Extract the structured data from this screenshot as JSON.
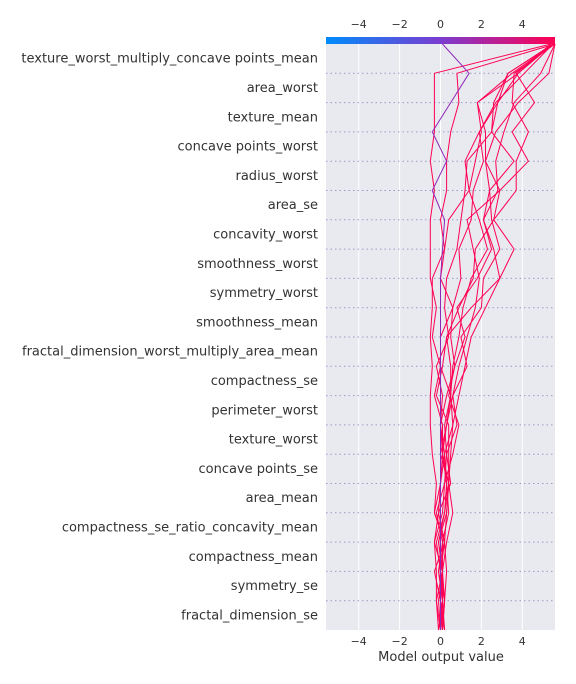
{
  "chart_data": {
    "type": "line",
    "xlabel": "Model output value",
    "xlim": [
      -5.6,
      5.6
    ],
    "xticks": [
      -4,
      -2,
      0,
      2,
      4
    ],
    "grid": true,
    "colorbar": {
      "position": "top",
      "colors": [
        "#008bfb",
        "#7b3cd0",
        "#ff0052"
      ]
    },
    "line_color": "#ff0052",
    "features": [
      "texture_worst_multiply_concave points_mean",
      "area_worst",
      "texture_mean",
      "concave points_worst",
      "radius_worst",
      "area_se",
      "concavity_worst",
      "smoothness_worst",
      "symmetry_worst",
      "smoothness_mean",
      "fractal_dimension_worst_multiply_area_mean",
      "compactness_se",
      "perimeter_worst",
      "texture_worst",
      "concave points_se",
      "area_mean",
      "compactness_se_ratio_concavity_mean",
      "compactness_mean",
      "symmetry_se",
      "fractal_dimension_se"
    ],
    "series_note_base": 0.0,
    "series": [
      {
        "color": "#ff0052",
        "values": [
          0.1,
          0.2,
          0.3,
          0.2,
          -0.3,
          -0.2,
          -0.4,
          -0.5,
          -0.5,
          -0.4,
          -0.5,
          -0.4,
          -0.4,
          0.2,
          0.0,
          0.3,
          0.3,
          0.5,
          0.9,
          0.8,
          5.6
        ]
      },
      {
        "color": "#ff0052",
        "values": [
          0.0,
          -0.2,
          0.1,
          -0.1,
          0.3,
          0.4,
          0.4,
          0.4,
          -0.2,
          0.1,
          0.3,
          1.5,
          2.9,
          3.6,
          2.6,
          3.7,
          3.7,
          4.3,
          3.5,
          3.6,
          5.6
        ]
      },
      {
        "color": "#ff0052",
        "values": [
          0.2,
          0.1,
          -0.1,
          0.1,
          0.4,
          0.3,
          0.2,
          0.6,
          0.5,
          0.0,
          -0.4,
          -0.2,
          -0.5,
          -0.5,
          -0.5,
          -0.3,
          -0.5,
          -0.3,
          -0.3,
          -0.3,
          5.4
        ]
      },
      {
        "color": "#ff0052",
        "values": [
          0.0,
          0.2,
          -0.1,
          0.2,
          -0.3,
          0.0,
          0.1,
          0.0,
          0.3,
          0.7,
          0.5,
          0.6,
          1.0,
          0.9,
          1.5,
          1.6,
          2.1,
          1.9,
          2.8,
          3.3,
          5.5
        ]
      },
      {
        "color": "#ff0052",
        "values": [
          -0.1,
          -0.2,
          -0.2,
          -0.3,
          -0.1,
          0.0,
          0.2,
          0.0,
          0.1,
          -0.2,
          0.4,
          0.2,
          0.3,
          0.8,
          1.0,
          1.2,
          1.3,
          2.5,
          2.6,
          3.3,
          5.5
        ]
      },
      {
        "color": "#ff0052",
        "values": [
          0.0,
          0.2,
          0.0,
          -0.2,
          0.2,
          0.3,
          0.1,
          0.1,
          -0.3,
          0.0,
          0.0,
          0.6,
          0.0,
          0.2,
          0.4,
          1.4,
          1.7,
          2.0,
          1.8,
          3.8,
          5.4
        ]
      },
      {
        "color": "#ff0052",
        "values": [
          0.2,
          0.0,
          0.1,
          0.1,
          -0.2,
          0.2,
          0.3,
          0.2,
          0.5,
          0.5,
          0.3,
          0.9,
          1.6,
          1.7,
          2.6,
          2.9,
          2.2,
          2.2,
          1.8,
          3.5,
          5.5
        ]
      },
      {
        "color": "#ff0052",
        "values": [
          0.1,
          0.0,
          -0.3,
          0.2,
          -0.1,
          0.5,
          0.3,
          0.8,
          0.6,
          1.3,
          1.0,
          2.0,
          2.1,
          2.9,
          2.5,
          2.4,
          3.6,
          2.5,
          2.8,
          3.8,
          5.5
        ]
      },
      {
        "color": "#ff0052",
        "values": [
          -0.1,
          0.1,
          0.1,
          0.3,
          0.6,
          0.4,
          0.1,
          0.3,
          0.6,
          0.9,
          1.3,
          1.7,
          1.9,
          1.6,
          1.3,
          2.9,
          4.3,
          3.5,
          4.6,
          3.7,
          5.4
        ]
      },
      {
        "color": "#ff0052",
        "values": [
          0.0,
          -0.1,
          0.1,
          -0.1,
          0.2,
          0.4,
          0.5,
          0.6,
          0.9,
          1.2,
          1.5,
          2.2,
          2.9,
          2.6,
          2.1,
          2.8,
          2.7,
          3.1,
          3.6,
          4.9,
          5.6
        ]
      },
      {
        "color": "#ff0052",
        "values": [
          0.1,
          0.2,
          0.1,
          -0.3,
          0.1,
          0.2,
          0.6,
          0.9,
          0.4,
          0.7,
          1.2,
          0.8,
          1.8,
          2.5,
          2.1,
          2.4,
          2.2,
          2.7,
          3.8,
          5.3,
          5.6
        ]
      },
      {
        "color": "#ff0052",
        "values": [
          0.0,
          0.1,
          0.0,
          0.2,
          0.3,
          0.4,
          0.0,
          0.3,
          0.5,
          0.6,
          0.9,
          1.1,
          1.5,
          2.3,
          1.9,
          1.4,
          1.2,
          1.9,
          2.7,
          4.1,
          5.5
        ]
      },
      {
        "color": "#8f28b8",
        "values": [
          0.0,
          0.0,
          0.0,
          0.0,
          0.0,
          0.0,
          0.0,
          0.0,
          0.0,
          0.0,
          0.0,
          0.0,
          0.0,
          0.1,
          0.2,
          -0.4,
          0.3,
          -0.4,
          0.5,
          1.4,
          0.1
        ]
      }
    ]
  }
}
